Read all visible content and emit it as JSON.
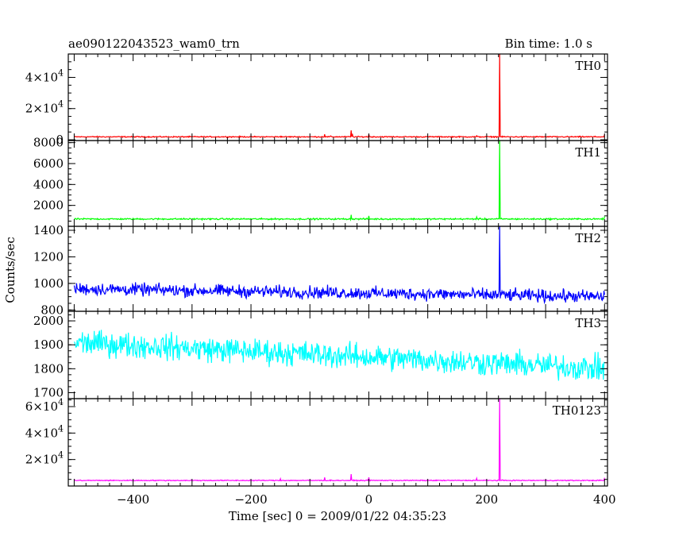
{
  "header": {
    "title": "ae090122043523_wam0_trn",
    "bin_time": "Bin time: 1.0 s"
  },
  "chart_data": {
    "type": "line",
    "xlabel": "Time [sec] 0 = 2009/01/22 04:35:23",
    "ylabel": "Counts/sec",
    "xlim": [
      -510,
      405
    ],
    "xticks": [
      -400,
      -200,
      0,
      200,
      400
    ],
    "xtick_labels": [
      "−400",
      "−200",
      "0",
      "200",
      "400"
    ],
    "panels": [
      {
        "name": "TH0",
        "color": "#ff0000",
        "ylim": [
          -500,
          55000
        ],
        "yticks": [
          0,
          20000,
          40000
        ],
        "ytick_labels": [
          {
            "base": "0",
            "exp": ""
          },
          {
            "base": "2×10",
            "exp": "4"
          },
          {
            "base": "4×10",
            "exp": "4"
          }
        ],
        "baseline": 1900,
        "noise": 300,
        "trend": 0,
        "spikes": [
          [
            -150,
            2300
          ],
          [
            -75,
            3500
          ],
          [
            -65,
            2500
          ],
          [
            -30,
            6000
          ],
          [
            -28,
            3800
          ],
          [
            0,
            3500
          ],
          [
            20,
            2100
          ],
          [
            183,
            2600
          ],
          [
            222,
            55000
          ],
          [
            400,
            3300
          ]
        ]
      },
      {
        "name": "TH1",
        "color": "#00ff00",
        "ylim": [
          0,
          8200
        ],
        "yticks": [
          2000,
          4000,
          6000,
          8000
        ],
        "ytick_labels": [
          {
            "base": "2000",
            "exp": ""
          },
          {
            "base": "4000",
            "exp": ""
          },
          {
            "base": "6000",
            "exp": ""
          },
          {
            "base": "8000",
            "exp": ""
          }
        ],
        "baseline": 700,
        "noise": 60,
        "trend": 0,
        "spikes": [
          [
            -30,
            1100
          ],
          [
            0,
            1000
          ],
          [
            183,
            900
          ],
          [
            222,
            8200
          ],
          [
            400,
            950
          ]
        ]
      },
      {
        "name": "TH2",
        "color": "#0000ff",
        "ylim": [
          790,
          1430
        ],
        "yticks": [
          800,
          1000,
          1200,
          1400
        ],
        "ytick_labels": [
          {
            "base": "800",
            "exp": ""
          },
          {
            "base": "1000",
            "exp": ""
          },
          {
            "base": "1200",
            "exp": ""
          },
          {
            "base": "1400",
            "exp": ""
          }
        ],
        "baseline": 960,
        "noise": 40,
        "trend": -60,
        "spikes": [
          [
            222,
            1430
          ]
        ]
      },
      {
        "name": "TH3",
        "color": "#00ffff",
        "ylim": [
          1675,
          2040
        ],
        "yticks": [
          1700,
          1800,
          1900,
          2000
        ],
        "ytick_labels": [
          {
            "base": "1700",
            "exp": ""
          },
          {
            "base": "1800",
            "exp": ""
          },
          {
            "base": "1900",
            "exp": ""
          },
          {
            "base": "2000",
            "exp": ""
          }
        ],
        "baseline": 1910,
        "noise": 45,
        "trend": -110,
        "spikes": []
      },
      {
        "name": "TH0123",
        "color": "#ff00ff",
        "ylim": [
          0,
          66000
        ],
        "yticks": [
          20000,
          40000,
          60000
        ],
        "ytick_labels": [
          {
            "base": "2×10",
            "exp": "4"
          },
          {
            "base": "4×10",
            "exp": "4"
          },
          {
            "base": "6×10",
            "exp": "4"
          }
        ],
        "baseline": 4200,
        "noise": 300,
        "trend": 0,
        "spikes": [
          [
            -150,
            5500
          ],
          [
            -75,
            6500
          ],
          [
            -30,
            9000
          ],
          [
            0,
            6500
          ],
          [
            183,
            5800
          ],
          [
            222,
            66000
          ],
          [
            400,
            6200
          ]
        ]
      }
    ]
  }
}
